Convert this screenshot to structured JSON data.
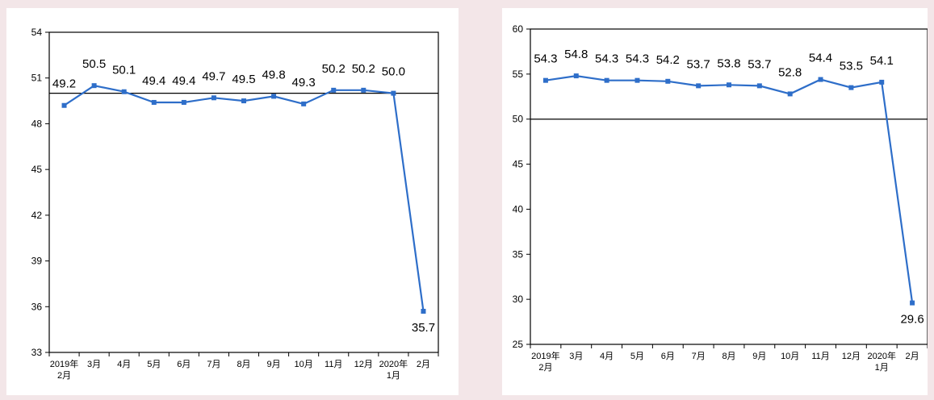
{
  "chart_data": [
    {
      "type": "line",
      "categories": [
        [
          "2019年",
          "2月"
        ],
        [
          "3月"
        ],
        [
          "4月"
        ],
        [
          "5月"
        ],
        [
          "6月"
        ],
        [
          "7月"
        ],
        [
          "8月"
        ],
        [
          "9月"
        ],
        [
          "10月"
        ],
        [
          "11月"
        ],
        [
          "12月"
        ],
        [
          "2020年",
          "1月"
        ],
        [
          "2月"
        ]
      ],
      "values": [
        49.2,
        50.5,
        50.1,
        49.4,
        49.4,
        49.7,
        49.5,
        49.8,
        49.3,
        50.2,
        50.2,
        50.0,
        35.7
      ],
      "data_labels": [
        "49.2",
        "50.5",
        "50.1",
        "49.4",
        "49.4",
        "49.7",
        "49.5",
        "49.8",
        "49.3",
        "50.2",
        "50.2",
        "50.0",
        "35.7"
      ],
      "ylim": [
        33,
        54
      ],
      "yticks": [
        33,
        36,
        39,
        42,
        45,
        48,
        51,
        54
      ],
      "reference_line": 50,
      "color": "#2e6ec9",
      "grid": false,
      "legend": "none"
    },
    {
      "type": "line",
      "categories": [
        [
          "2019年",
          "2月"
        ],
        [
          "3月"
        ],
        [
          "4月"
        ],
        [
          "5月"
        ],
        [
          "6月"
        ],
        [
          "7月"
        ],
        [
          "8月"
        ],
        [
          "9月"
        ],
        [
          "10月"
        ],
        [
          "11月"
        ],
        [
          "12月"
        ],
        [
          "2020年",
          "1月"
        ],
        [
          "2月"
        ]
      ],
      "values": [
        54.3,
        54.8,
        54.3,
        54.3,
        54.2,
        53.7,
        53.8,
        53.7,
        52.8,
        54.4,
        53.5,
        54.1,
        29.6
      ],
      "data_labels": [
        "54.3",
        "54.8",
        "54.3",
        "54.3",
        "54.2",
        "53.7",
        "53.8",
        "53.7",
        "52.8",
        "54.4",
        "53.5",
        "54.1",
        "29.6"
      ],
      "ylim": [
        25,
        60
      ],
      "yticks": [
        25,
        30,
        35,
        40,
        45,
        50,
        55,
        60
      ],
      "reference_line": 50,
      "color": "#2e6ec9",
      "grid": false,
      "legend": "none"
    }
  ]
}
